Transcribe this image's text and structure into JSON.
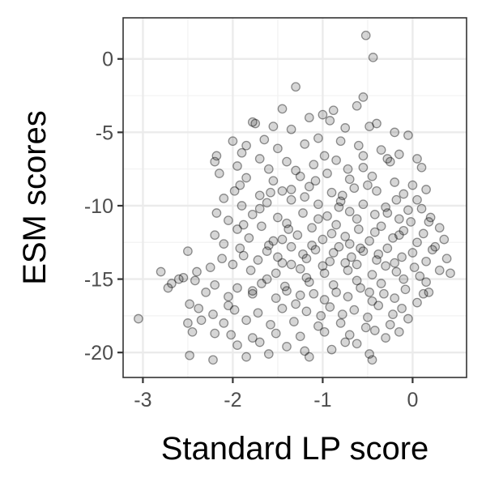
{
  "chart_data": {
    "type": "scatter",
    "xlabel": "Standard LP score",
    "ylabel": "ESM scores",
    "xlim": [
      -3.22,
      0.6
    ],
    "ylim": [
      -21.7,
      2.8
    ],
    "xticks": [
      {
        "value": -3,
        "label": "-3"
      },
      {
        "value": -2,
        "label": "-2"
      },
      {
        "value": -1,
        "label": "-1"
      },
      {
        "value": 0,
        "label": "0"
      }
    ],
    "yticks": [
      {
        "value": 0,
        "label": "0"
      },
      {
        "value": -5,
        "label": "-5"
      },
      {
        "value": -10,
        "label": "-10"
      },
      {
        "value": -15,
        "label": "-15"
      },
      {
        "value": -20,
        "label": "-20"
      }
    ],
    "grid": true,
    "marker_color": "#000000",
    "marker_alpha": 0.16,
    "points": [
      [
        -0.52,
        1.6
      ],
      [
        -0.44,
        0.1
      ],
      [
        -0.55,
        -2.6
      ],
      [
        -1.3,
        -1.9
      ],
      [
        -0.62,
        -3.2
      ],
      [
        -0.88,
        -3.5
      ],
      [
        -1.0,
        -3.8
      ],
      [
        -1.45,
        -3.4
      ],
      [
        -1.15,
        -4.0
      ],
      [
        -0.92,
        -4.2
      ],
      [
        -0.75,
        -4.7
      ],
      [
        -0.4,
        -4.4
      ],
      [
        -0.2,
        -5.0
      ],
      [
        -0.05,
        -5.2
      ],
      [
        -0.48,
        -4.6
      ],
      [
        -1.78,
        -4.3
      ],
      [
        -1.75,
        -4.4
      ],
      [
        -1.55,
        -4.6
      ],
      [
        -1.35,
        -4.8
      ],
      [
        -1.65,
        -5.5
      ],
      [
        -1.85,
        -5.9
      ],
      [
        -2.0,
        -5.6
      ],
      [
        -1.9,
        -6.4
      ],
      [
        -2.18,
        -6.6
      ],
      [
        -1.7,
        -6.8
      ],
      [
        -1.5,
        -6.1
      ],
      [
        -1.2,
        -5.8
      ],
      [
        -1.05,
        -5.4
      ],
      [
        -0.8,
        -5.6
      ],
      [
        -0.6,
        -5.9
      ],
      [
        -0.35,
        -6.2
      ],
      [
        -0.15,
        -6.5
      ],
      [
        0.05,
        -6.8
      ],
      [
        0.1,
        -7.4
      ],
      [
        -0.25,
        -7.0
      ],
      [
        -0.55,
        -6.6
      ],
      [
        -0.85,
        -6.9
      ],
      [
        -1.1,
        -7.2
      ],
      [
        -1.4,
        -7.0
      ],
      [
        -1.6,
        -7.5
      ],
      [
        -1.95,
        -7.3
      ],
      [
        -2.2,
        -7.0
      ],
      [
        -2.15,
        -7.8
      ],
      [
        -1.85,
        -8.1
      ],
      [
        -1.55,
        -8.3
      ],
      [
        -1.25,
        -8.0
      ],
      [
        -0.95,
        -7.8
      ],
      [
        -0.7,
        -8.2
      ],
      [
        -0.45,
        -8.0
      ],
      [
        -0.2,
        -8.4
      ],
      [
        0.0,
        -8.6
      ],
      [
        0.15,
        -8.9
      ],
      [
        -0.1,
        -9.2
      ],
      [
        -0.4,
        -9.0
      ],
      [
        -0.65,
        -8.8
      ],
      [
        -0.9,
        -9.1
      ],
      [
        -1.15,
        -8.7
      ],
      [
        -1.45,
        -9.0
      ],
      [
        -1.7,
        -9.3
      ],
      [
        -1.98,
        -9.0
      ],
      [
        -2.1,
        -9.5
      ],
      [
        -2.18,
        -10.5
      ],
      [
        -1.9,
        -10.0
      ],
      [
        -1.62,
        -9.8
      ],
      [
        -1.35,
        -9.6
      ],
      [
        -1.05,
        -9.9
      ],
      [
        -0.8,
        -9.7
      ],
      [
        -0.55,
        -9.9
      ],
      [
        -0.3,
        -10.1
      ],
      [
        -0.05,
        -10.3
      ],
      [
        0.1,
        -10.2
      ],
      [
        0.2,
        -10.8
      ],
      [
        -0.15,
        -10.9
      ],
      [
        -0.42,
        -10.6
      ],
      [
        -0.7,
        -10.4
      ],
      [
        -0.95,
        -10.7
      ],
      [
        -1.22,
        -10.5
      ],
      [
        -1.5,
        -10.8
      ],
      [
        -1.78,
        -10.6
      ],
      [
        -2.05,
        -11.0
      ],
      [
        -2.2,
        -12.0
      ],
      [
        -1.95,
        -11.6
      ],
      [
        -1.68,
        -11.4
      ],
      [
        -1.4,
        -11.2
      ],
      [
        -1.12,
        -11.5
      ],
      [
        -0.85,
        -11.3
      ],
      [
        -0.6,
        -11.6
      ],
      [
        -0.35,
        -11.4
      ],
      [
        -0.1,
        -11.7
      ],
      [
        0.12,
        -11.9
      ],
      [
        0.3,
        -11.5
      ],
      [
        0.35,
        -12.3
      ],
      [
        0.05,
        -12.5
      ],
      [
        -0.22,
        -12.2
      ],
      [
        -0.48,
        -12.4
      ],
      [
        -0.75,
        -12.1
      ],
      [
        -1.0,
        -12.3
      ],
      [
        -1.28,
        -12.0
      ],
      [
        -1.55,
        -12.4
      ],
      [
        -1.82,
        -12.2
      ],
      [
        -2.1,
        -12.6
      ],
      [
        -1.92,
        -12.9
      ],
      [
        -1.62,
        -13.1
      ],
      [
        -1.35,
        -12.8
      ],
      [
        -1.08,
        -13.0
      ],
      [
        -0.82,
        -12.8
      ],
      [
        -0.55,
        -13.1
      ],
      [
        -0.28,
        -12.9
      ],
      [
        0.0,
        -13.2
      ],
      [
        0.22,
        -13.0
      ],
      [
        0.38,
        -13.6
      ],
      [
        0.15,
        -13.8
      ],
      [
        -0.12,
        -13.5
      ],
      [
        -0.4,
        -13.7
      ],
      [
        -0.68,
        -13.5
      ],
      [
        -0.92,
        -13.8
      ],
      [
        -1.18,
        -13.6
      ],
      [
        -1.45,
        -13.9
      ],
      [
        -1.72,
        -13.7
      ],
      [
        -2.0,
        -14.0
      ],
      [
        -2.25,
        -14.2
      ],
      [
        -2.4,
        -14.5
      ],
      [
        -2.5,
        -13.1
      ],
      [
        -1.8,
        -14.4
      ],
      [
        -1.52,
        -14.6
      ],
      [
        -1.25,
        -14.3
      ],
      [
        -0.98,
        -14.6
      ],
      [
        -0.72,
        -14.4
      ],
      [
        -0.45,
        -14.7
      ],
      [
        -0.18,
        -14.5
      ],
      [
        0.08,
        -14.8
      ],
      [
        0.3,
        -14.4
      ],
      [
        0.42,
        -14.6
      ],
      [
        0.15,
        -15.2
      ],
      [
        -0.1,
        -15.0
      ],
      [
        -0.35,
        -15.3
      ],
      [
        -0.62,
        -15.1
      ],
      [
        -0.88,
        -15.4
      ],
      [
        -1.15,
        -15.2
      ],
      [
        -1.42,
        -15.5
      ],
      [
        -1.68,
        -15.3
      ],
      [
        -1.95,
        -15.6
      ],
      [
        -2.2,
        -15.4
      ],
      [
        -2.42,
        -15.1
      ],
      [
        -2.6,
        -15.0
      ],
      [
        -2.68,
        -15.3
      ],
      [
        -2.72,
        -15.6
      ],
      [
        -2.8,
        -14.5
      ],
      [
        -2.55,
        -14.9
      ],
      [
        -2.3,
        -15.9
      ],
      [
        -2.05,
        -16.2
      ],
      [
        -1.78,
        -16.0
      ],
      [
        -1.52,
        -16.3
      ],
      [
        -1.25,
        -16.1
      ],
      [
        -0.98,
        -16.4
      ],
      [
        -0.72,
        -16.2
      ],
      [
        -0.45,
        -16.5
      ],
      [
        -0.2,
        -16.3
      ],
      [
        0.05,
        -16.6
      ],
      [
        0.12,
        -16.0
      ],
      [
        -0.12,
        -17.0
      ],
      [
        -0.38,
        -16.8
      ],
      [
        -0.65,
        -17.1
      ],
      [
        -0.92,
        -16.9
      ],
      [
        -1.18,
        -17.2
      ],
      [
        -1.45,
        -17.0
      ],
      [
        -1.72,
        -17.3
      ],
      [
        -1.98,
        -17.1
      ],
      [
        -2.22,
        -17.4
      ],
      [
        -2.38,
        -17.0
      ],
      [
        -2.48,
        -16.7
      ],
      [
        -2.35,
        -17.8
      ],
      [
        -2.1,
        -18.0
      ],
      [
        -1.85,
        -17.8
      ],
      [
        -1.58,
        -18.1
      ],
      [
        -1.32,
        -17.9
      ],
      [
        -1.05,
        -18.2
      ],
      [
        -0.8,
        -18.0
      ],
      [
        -0.52,
        -18.3
      ],
      [
        -0.25,
        -18.1
      ],
      [
        -0.05,
        -17.7
      ],
      [
        -0.15,
        -18.6
      ],
      [
        -0.42,
        -18.5
      ],
      [
        -0.7,
        -18.8
      ],
      [
        -0.98,
        -18.6
      ],
      [
        -1.25,
        -18.9
      ],
      [
        -1.52,
        -18.7
      ],
      [
        -1.78,
        -19.0
      ],
      [
        -2.02,
        -18.8
      ],
      [
        -2.2,
        -18.7
      ],
      [
        -2.5,
        -18.0
      ],
      [
        -2.45,
        -18.6
      ],
      [
        -1.95,
        -19.5
      ],
      [
        -1.7,
        -19.3
      ],
      [
        -1.4,
        -19.6
      ],
      [
        -1.15,
        -20.3
      ],
      [
        -0.9,
        -19.8
      ],
      [
        -0.62,
        -19.4
      ],
      [
        -0.48,
        -20.1
      ],
      [
        -0.45,
        -20.5
      ],
      [
        -1.6,
        -20.1
      ],
      [
        -1.85,
        -20.3
      ],
      [
        -2.22,
        -20.5
      ],
      [
        -2.48,
        -20.2
      ],
      [
        -3.05,
        -17.7
      ],
      [
        -1.2,
        -19.9
      ],
      [
        -0.75,
        -19.3
      ],
      [
        -0.3,
        -19.0
      ],
      [
        -1.88,
        -13.4
      ],
      [
        -1.6,
        -12.7
      ],
      [
        -1.05,
        -10.9
      ],
      [
        -0.78,
        -9.3
      ],
      [
        -0.55,
        -7.4
      ],
      [
        -0.28,
        -6.8
      ],
      [
        0.05,
        -9.6
      ],
      [
        -1.3,
        -7.6
      ],
      [
        -1.92,
        -8.6
      ],
      [
        -1.7,
        -10.2
      ],
      [
        -1.38,
        -11.6
      ],
      [
        -1.12,
        -12.7
      ],
      [
        -0.88,
        -13.2
      ],
      [
        -0.62,
        -14.0
      ],
      [
        -0.38,
        -13.3
      ],
      [
        -0.15,
        -12.0
      ],
      [
        -0.02,
        -11.1
      ],
      [
        -0.28,
        -10.5
      ],
      [
        -0.5,
        -8.6
      ],
      [
        -0.72,
        -7.5
      ],
      [
        -0.98,
        -6.6
      ],
      [
        -1.2,
        -9.4
      ],
      [
        -1.45,
        -12.3
      ],
      [
        -1.18,
        -14.9
      ],
      [
        -0.85,
        -15.9
      ],
      [
        -0.58,
        -15.6
      ],
      [
        -0.32,
        -16.0
      ],
      [
        -0.08,
        -15.7
      ],
      [
        0.18,
        -15.9
      ],
      [
        -1.62,
        -15.0
      ],
      [
        -1.35,
        -14.0
      ],
      [
        -1.0,
        -14.1
      ],
      [
        -0.7,
        -12.6
      ],
      [
        -0.42,
        -11.8
      ],
      [
        -0.18,
        -9.6
      ],
      [
        -0.62,
        -10.9
      ],
      [
        -0.9,
        -11.9
      ],
      [
        -1.22,
        -13.3
      ],
      [
        -1.5,
        -13.5
      ],
      [
        -1.78,
        -15.8
      ],
      [
        -2.05,
        -16.8
      ],
      [
        -1.3,
        -16.7
      ],
      [
        -1.02,
        -17.5
      ],
      [
        -0.78,
        -17.4
      ],
      [
        -0.5,
        -17.6
      ],
      [
        -0.22,
        -17.4
      ],
      [
        0.02,
        -14.2
      ],
      [
        0.25,
        -12.8
      ],
      [
        -0.3,
        -14.1
      ],
      [
        -0.58,
        -12.9
      ],
      [
        -0.82,
        -10.1
      ],
      [
        -1.08,
        -8.3
      ],
      [
        -1.35,
        -8.9
      ],
      [
        -1.58,
        -9.1
      ],
      [
        -1.88,
        -11.3
      ],
      [
        -2.12,
        -13.6
      ],
      [
        -1.4,
        -15.8
      ],
      [
        -1.1,
        -16.0
      ],
      [
        -0.75,
        -13.9
      ],
      [
        -0.48,
        -15.9
      ],
      [
        -0.2,
        -13.9
      ],
      [
        0.18,
        -11.1
      ]
    ]
  }
}
